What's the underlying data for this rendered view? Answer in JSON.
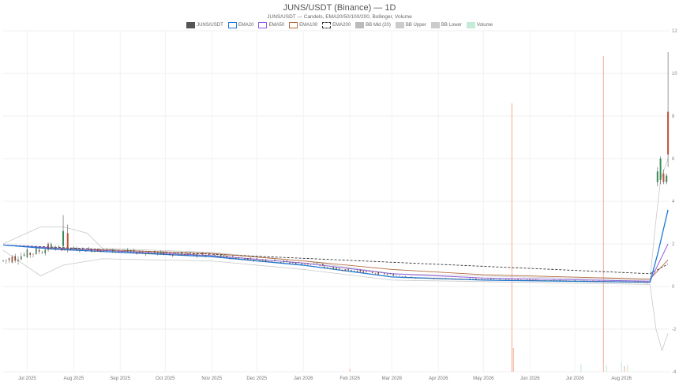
{
  "chart_data": {
    "type": "candlestick",
    "title": "JUNS/USDT (Binance) — 1D",
    "subtitle": "JUNS/USDT — Candels, EMA20/50/100/200, Bollinger, Volume",
    "legend": [
      {
        "name": "JUNS/USDT",
        "color": "#555555",
        "style": "fill"
      },
      {
        "name": "EMA20",
        "color": "#1f77d4",
        "style": "line"
      },
      {
        "name": "EMA50",
        "color": "#8e5ee0",
        "style": "line"
      },
      {
        "name": "EMA100",
        "color": "#b36b3f",
        "style": "line"
      },
      {
        "name": "EMA200",
        "color": "#333333",
        "style": "dash"
      },
      {
        "name": "BB Mid (20)",
        "color": "#bbbbbb",
        "style": "fill"
      },
      {
        "name": "BB Upper",
        "color": "#cccccc",
        "style": "fill"
      },
      {
        "name": "BB Lower",
        "color": "#cccccc",
        "style": "fill"
      },
      {
        "name": "Volume",
        "color": "#c5ead8",
        "style": "fill"
      }
    ],
    "x_ticks": [
      "Jul 2025",
      "Aug 2025",
      "Sep 2025",
      "Oct 2025",
      "Nov 2025",
      "Dec 2025",
      "Jan 2026",
      "Feb 2026",
      "Mar 2026",
      "Apr 2026",
      "May 2026",
      "Jun 2026",
      "Jul 2026",
      "Aug 2026"
    ],
    "y_ticks": [
      12,
      10,
      8,
      6,
      4,
      2,
      0,
      -2,
      -4
    ],
    "ylim": [
      -4,
      12
    ],
    "grid": true,
    "legend_position": "top-center",
    "ema200": [
      {
        "x": "2025-06-15",
        "y": 1.95
      },
      {
        "x": "2026-08-20",
        "y": 0.6
      },
      {
        "x": "2026-09-01",
        "y": 1.05
      }
    ],
    "ema100": [
      {
        "x": "2025-06-15",
        "y": 1.95
      },
      {
        "x": "2025-07-20",
        "y": 1.8
      },
      {
        "x": "2025-11-01",
        "y": 1.55
      },
      {
        "x": "2026-01-01",
        "y": 1.2
      },
      {
        "x": "2026-03-01",
        "y": 0.8
      },
      {
        "x": "2026-05-01",
        "y": 0.55
      },
      {
        "x": "2026-08-20",
        "y": 0.35
      },
      {
        "x": "2026-09-01",
        "y": 1.25
      }
    ],
    "ema50": [
      {
        "x": "2025-06-15",
        "y": 1.95
      },
      {
        "x": "2025-07-20",
        "y": 1.8
      },
      {
        "x": "2025-11-01",
        "y": 1.45
      },
      {
        "x": "2026-01-01",
        "y": 1.1
      },
      {
        "x": "2026-03-01",
        "y": 0.6
      },
      {
        "x": "2026-05-01",
        "y": 0.4
      },
      {
        "x": "2026-08-20",
        "y": 0.25
      },
      {
        "x": "2026-09-01",
        "y": 2.0
      }
    ],
    "ema20": [
      {
        "x": "2025-06-15",
        "y": 1.95
      },
      {
        "x": "2025-07-20",
        "y": 1.75
      },
      {
        "x": "2025-11-01",
        "y": 1.4
      },
      {
        "x": "2026-01-01",
        "y": 1.0
      },
      {
        "x": "2026-03-01",
        "y": 0.45
      },
      {
        "x": "2026-05-01",
        "y": 0.3
      },
      {
        "x": "2026-08-20",
        "y": 0.2
      },
      {
        "x": "2026-08-25",
        "y": 1.5
      },
      {
        "x": "2026-09-01",
        "y": 3.6
      }
    ],
    "bb_upper": [
      {
        "x": "2025-06-15",
        "y": 2.0
      },
      {
        "x": "2025-07-10",
        "y": 2.8
      },
      {
        "x": "2025-07-25",
        "y": 2.8
      },
      {
        "x": "2025-08-10",
        "y": 2.5
      },
      {
        "x": "2025-08-20",
        "y": 1.8
      },
      {
        "x": "2025-11-01",
        "y": 1.6
      },
      {
        "x": "2026-01-01",
        "y": 1.2
      },
      {
        "x": "2026-03-01",
        "y": 0.6
      },
      {
        "x": "2026-08-20",
        "y": 0.3
      },
      {
        "x": "2026-08-23",
        "y": 2.5
      },
      {
        "x": "2026-08-27",
        "y": 5.0
      },
      {
        "x": "2026-09-01",
        "y": 6.0
      }
    ],
    "bb_lower": [
      {
        "x": "2025-06-15",
        "y": 1.7
      },
      {
        "x": "2025-07-10",
        "y": 0.5
      },
      {
        "x": "2025-07-25",
        "y": 1.0
      },
      {
        "x": "2025-08-20",
        "y": 1.3
      },
      {
        "x": "2025-11-01",
        "y": 1.2
      },
      {
        "x": "2026-01-01",
        "y": 0.8
      },
      {
        "x": "2026-03-01",
        "y": 0.3
      },
      {
        "x": "2026-08-20",
        "y": 0.1
      },
      {
        "x": "2026-08-24",
        "y": -2.0
      },
      {
        "x": "2026-08-28",
        "y": -3.0
      },
      {
        "x": "2026-09-01",
        "y": -2.2
      }
    ],
    "candle_regions": [
      {
        "start": "2025-06-15",
        "end": "2025-07-20",
        "level_start": 1.2,
        "level_end": 1.9,
        "spread": 0.45
      },
      {
        "start": "2025-07-20",
        "end": "2025-11-01",
        "level_start": 1.8,
        "level_end": 1.45,
        "spread": 0.2
      },
      {
        "start": "2025-11-01",
        "end": "2026-01-15",
        "level_start": 1.45,
        "level_end": 1.0,
        "spread": 0.15
      },
      {
        "start": "2026-01-15",
        "end": "2026-03-15",
        "level_start": 0.9,
        "level_end": 0.45,
        "spread": 0.12
      },
      {
        "start": "2026-03-15",
        "end": "2026-08-20",
        "level_start": 0.4,
        "level_end": 0.2,
        "spread": 0.06
      }
    ],
    "highlight_candles": [
      {
        "x": "2025-07-25",
        "open": 1.9,
        "close": 2.6,
        "high": 3.35,
        "low": 1.7
      },
      {
        "x": "2025-07-28",
        "open": 2.5,
        "close": 1.8,
        "high": 2.9,
        "low": 1.6
      },
      {
        "x": "2026-08-25",
        "open": 4.9,
        "close": 5.4,
        "high": 5.6,
        "low": 4.7
      },
      {
        "x": "2026-08-27",
        "open": 5.0,
        "close": 6.0,
        "high": 6.1,
        "low": 4.8
      },
      {
        "x": "2026-08-29",
        "open": 5.3,
        "close": 4.9,
        "high": 5.5,
        "low": 4.8
      },
      {
        "x": "2026-08-31",
        "open": 4.9,
        "close": 5.2,
        "high": 5.3,
        "low": 4.8
      },
      {
        "x": "2026-09-01",
        "open": 8.2,
        "close": 6.2,
        "high": 11.0,
        "low": 5.6
      }
    ],
    "volume_spikes": [
      {
        "x": "2026-05-20",
        "value": 0.85,
        "color": "#f4b8a8"
      },
      {
        "x": "2026-07-20",
        "value": 1.0,
        "color": "#f4b8a8"
      }
    ],
    "volume_bars": [
      {
        "x": "2026-02-01",
        "value": 0.03,
        "color": "#f4b8a8"
      },
      {
        "x": "2026-05-21",
        "value": 0.25,
        "color": "#f4b8a8"
      },
      {
        "x": "2026-07-05",
        "value": 0.08,
        "color": "#c5ead8"
      },
      {
        "x": "2026-07-22",
        "value": 0.07,
        "color": "#c5ead8"
      },
      {
        "x": "2026-08-01",
        "value": 0.1,
        "color": "#c5ead8"
      },
      {
        "x": "2026-08-03",
        "value": 0.06,
        "color": "#f4b8a8"
      },
      {
        "x": "2026-08-05",
        "value": 0.07,
        "color": "#c5ead8"
      }
    ]
  }
}
